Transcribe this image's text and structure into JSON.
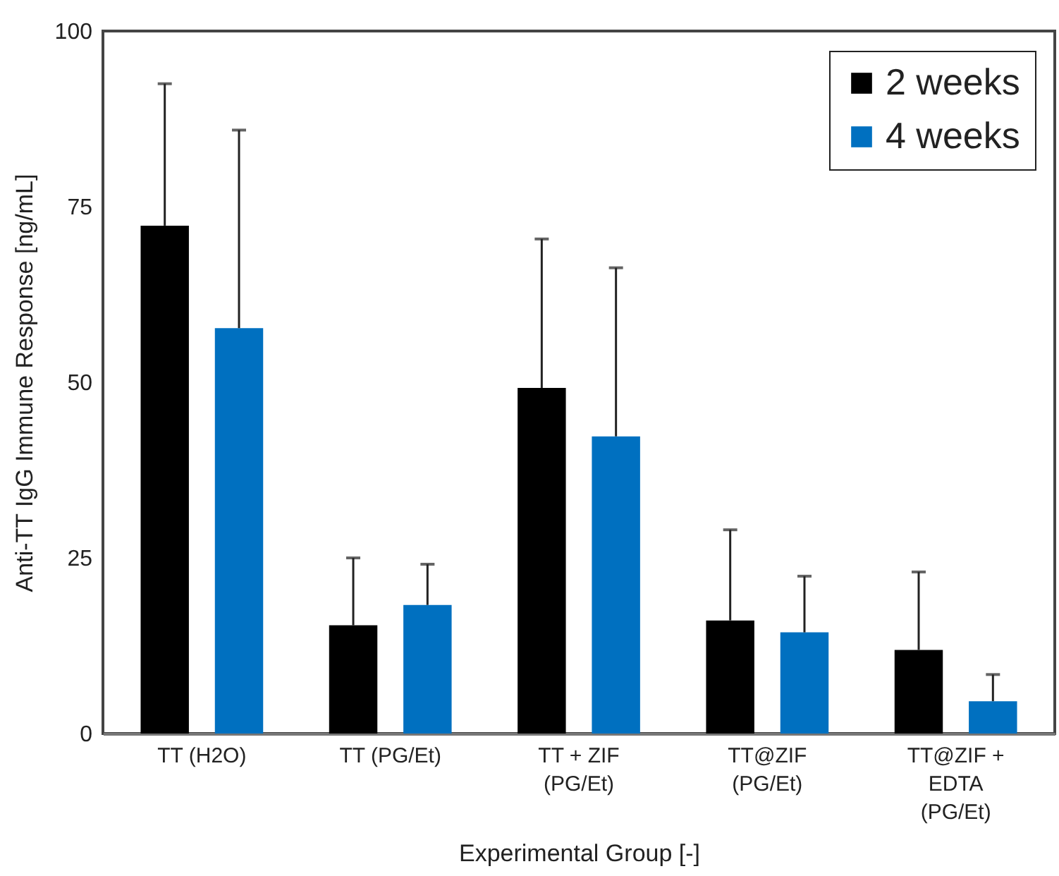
{
  "chart_data": {
    "type": "bar",
    "xlabel": "Experimental Group [-]",
    "ylabel": "Anti-TT IgG Immune Response [ng/mL]",
    "categories": [
      "TT (H2O)",
      "TT (PG/Et)",
      "TT + ZIF\n(PG/Et)",
      "TT@ZIF\n(PG/Et)",
      "TT@ZIF +\nEDTA\n(PG/Et)"
    ],
    "series": [
      {
        "name": "2 weeks",
        "color": "#000000",
        "values": [
          72.3,
          15.4,
          49.2,
          16.1,
          11.9
        ],
        "errors": [
          [
            72.3,
            92.5
          ],
          [
            15.4,
            25.0
          ],
          [
            49.2,
            70.4
          ],
          [
            16.1,
            29.0
          ],
          [
            11.9,
            23.0
          ]
        ]
      },
      {
        "name": "4 weeks",
        "color": "#0070c0",
        "values": [
          57.7,
          18.3,
          42.3,
          14.4,
          4.6
        ],
        "errors": [
          [
            57.7,
            85.9
          ],
          [
            18.3,
            24.1
          ],
          [
            42.3,
            66.3
          ],
          [
            14.4,
            22.4
          ],
          [
            4.6,
            8.4
          ]
        ]
      }
    ],
    "ylim": [
      0,
      100
    ],
    "yticks": [
      0,
      25,
      50,
      75,
      100
    ],
    "grid": false,
    "legend": "top right"
  }
}
